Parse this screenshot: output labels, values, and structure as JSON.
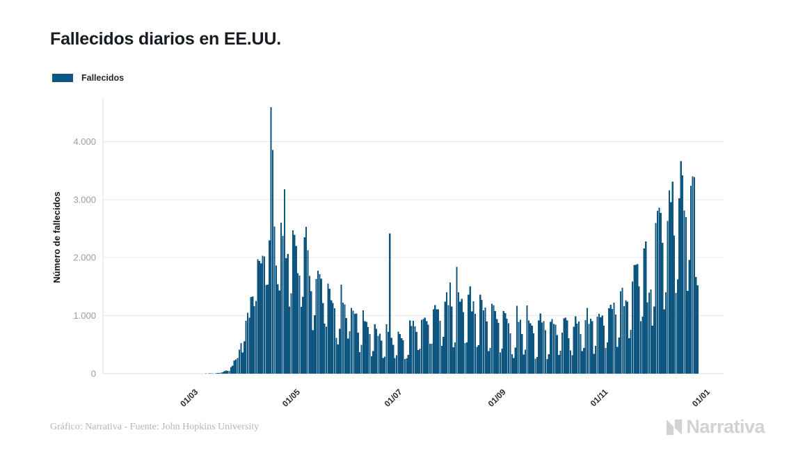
{
  "header": {
    "title": "Fallecidos diarios en EE.UU."
  },
  "legend": {
    "label": "Fallecidos",
    "color": "#0E567F"
  },
  "footer": {
    "credit": "Gráfico: Narrativa - Fuente: John Hopkins University",
    "logo_text": "Narrativa",
    "logo_color": "#d2d2d2"
  },
  "chart_data": {
    "type": "bar",
    "title": "Fallecidos diarios en EE.UU.",
    "series_name": "Fallecidos",
    "xlabel": "",
    "ylabel": "Número de fallecidos",
    "bar_color": "#0E567F",
    "grid_color": "#e8e8e8",
    "axis_color": "#dddddd",
    "grid": true,
    "legend_position": "top-left",
    "ylim": [
      0,
      4700
    ],
    "y_ticks": [
      {
        "value": 0,
        "label": "0"
      },
      {
        "value": 1000,
        "label": "1.000"
      },
      {
        "value": 2000,
        "label": "2.000"
      },
      {
        "value": 3000,
        "label": "3.000"
      },
      {
        "value": 4000,
        "label": "4.000"
      }
    ],
    "x_domain": [
      "2020-01-06",
      "2021-01-11"
    ],
    "x_ticks": [
      {
        "date": "2020-03-01",
        "label": "01/03"
      },
      {
        "date": "2020-05-01",
        "label": "01/05"
      },
      {
        "date": "2020-07-01",
        "label": "01/07"
      },
      {
        "date": "2020-09-01",
        "label": "01/09"
      },
      {
        "date": "2020-11-01",
        "label": "01/11"
      },
      {
        "date": "2021-01-01",
        "label": "01/01"
      }
    ],
    "start_date": "2020-01-22",
    "values": [
      0,
      0,
      0,
      0,
      0,
      0,
      0,
      0,
      0,
      0,
      0,
      0,
      0,
      0,
      0,
      0,
      0,
      0,
      0,
      0,
      0,
      0,
      0,
      0,
      0,
      0,
      0,
      0,
      0,
      0,
      0,
      0,
      0,
      0,
      0,
      0,
      0,
      0,
      1,
      1,
      1,
      3,
      2,
      1,
      3,
      4,
      3,
      4,
      4,
      8,
      3,
      8,
      11,
      11,
      18,
      23,
      41,
      57,
      49,
      46,
      111,
      140,
      225,
      247,
      268,
      411,
      525,
      363,
      558,
      912,
      1049,
      968,
      1321,
      1331,
      1165,
      1255,
      1970,
      1940,
      1900,
      2035,
      2022,
      1528,
      1535,
      2299,
      4591,
      3857,
      2535,
      1867,
      1539,
      1433,
      2599,
      2376,
      3179,
      1993,
      2065,
      1157,
      1384,
      2470,
      2390,
      2201,
      1732,
      1691,
      1154,
      1324,
      2350,
      2528,
      2129,
      1687,
      1422,
      750,
      1008,
      1630,
      1772,
      1715,
      1635,
      1218,
      865,
      808,
      1552,
      1461,
      1263,
      1215,
      1129,
      620,
      505,
      774,
      1535,
      1223,
      1193,
      960,
      605,
      730,
      1134,
      1083,
      1031,
      1036,
      709,
      373,
      497,
      1093,
      906,
      891,
      802,
      683,
      300,
      389,
      851,
      776,
      653,
      691,
      570,
      267,
      294,
      850,
      722,
      2418,
      619,
      500,
      271,
      316,
      724,
      684,
      613,
      573,
      253,
      263,
      324,
      919,
      819,
      912,
      817,
      720,
      410,
      431,
      927,
      942,
      967,
      908,
      843,
      515,
      516,
      1107,
      1184,
      1108,
      1109,
      909,
      481,
      635,
      1240,
      1403,
      1184,
      1568,
      1158,
      453,
      541,
      1843,
      1401,
      1242,
      1290,
      1064,
      530,
      539,
      1362,
      1504,
      1076,
      1246,
      1034,
      459,
      494,
      1358,
      1272,
      1094,
      1142,
      902,
      391,
      443,
      1205,
      1184,
      1082,
      942,
      875,
      363,
      433,
      1077,
      1045,
      946,
      870,
      696,
      336,
      271,
      451,
      1168,
      893,
      929,
      685,
      332,
      415,
      1175,
      920,
      869,
      828,
      694,
      258,
      288,
      920,
      1039,
      879,
      905,
      751,
      252,
      334,
      892,
      941,
      857,
      846,
      664,
      325,
      397,
      709,
      953,
      968,
      917,
      612,
      404,
      320,
      812,
      987,
      861,
      902,
      682,
      388,
      445,
      926,
      1135,
      856,
      948,
      906,
      340,
      477,
      985,
      1030,
      971,
      1004,
      827,
      443,
      540,
      1130,
      1187,
      1113,
      1223,
      1019,
      459,
      621,
      1420,
      1480,
      1164,
      1266,
      1242,
      613,
      753,
      1591,
      1869,
      1878,
      1890,
      1504,
      905,
      986,
      2157,
      2280,
      1232,
      1395,
      1448,
      827,
      1160,
      2597,
      2804,
      2861,
      2768,
      2254,
      1110,
      1404,
      2634,
      3157,
      2958,
      3309,
      2378,
      1389,
      1624,
      3019,
      3663,
      3420,
      2814,
      2697,
      1427,
      1962,
      3239,
      3398,
      3387,
      1664,
      1525
    ]
  }
}
